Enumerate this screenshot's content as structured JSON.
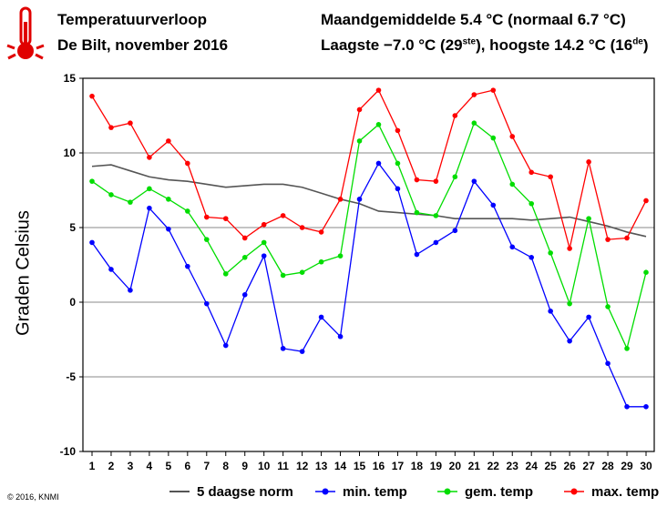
{
  "header": {
    "title": "Temperatuurverloop",
    "subtitle": "De Bilt, november 2016",
    "monthly_avg": "Maandgemiddelde 5.4 °C (normaal 6.7 °C)",
    "extremes_pre": "Laagste −7.0 °C (29",
    "extremes_sup1": "ste",
    "extremes_mid": "), hoogste 14.2 °C (16",
    "extremes_sup2": "de",
    "extremes_post": ")"
  },
  "icon": "thermometer-icon",
  "copyright": "© 2016, KNMI",
  "chart_data": {
    "type": "line",
    "ylabel": "Graden Celsius",
    "xlabel": "",
    "x": [
      1,
      2,
      3,
      4,
      5,
      6,
      7,
      8,
      9,
      10,
      11,
      12,
      13,
      14,
      15,
      16,
      17,
      18,
      19,
      20,
      21,
      22,
      23,
      24,
      25,
      26,
      27,
      28,
      29,
      30
    ],
    "ylim": [
      -10,
      15
    ],
    "yticks": [
      -10,
      -5,
      0,
      5,
      10,
      15
    ],
    "grid": true,
    "legend_position": "bottom",
    "series": [
      {
        "name": "5 daagse norm",
        "color": "#555555",
        "marker": false,
        "values": [
          9.1,
          9.2,
          8.8,
          8.4,
          8.2,
          8.1,
          7.9,
          7.7,
          7.8,
          7.9,
          7.9,
          7.7,
          7.3,
          6.9,
          6.6,
          6.1,
          6.0,
          5.9,
          5.8,
          5.6,
          5.6,
          5.6,
          5.6,
          5.5,
          5.6,
          5.7,
          5.4,
          5.1,
          4.7,
          4.4
        ]
      },
      {
        "name": "min. temp",
        "color": "#0000ff",
        "marker": true,
        "values": [
          4.0,
          2.2,
          0.8,
          6.3,
          4.9,
          2.4,
          -0.1,
          -2.9,
          0.5,
          3.1,
          -3.1,
          -3.3,
          -1.0,
          -2.3,
          6.9,
          9.3,
          7.6,
          3.2,
          4.0,
          4.8,
          8.1,
          6.5,
          3.7,
          3.0,
          -0.6,
          -2.6,
          -1.0,
          -4.1,
          -7.0,
          -7.0
        ]
      },
      {
        "name": "gem. temp",
        "color": "#00dd00",
        "marker": true,
        "values": [
          8.1,
          7.2,
          6.7,
          7.6,
          6.9,
          6.1,
          4.2,
          1.9,
          3.0,
          4.0,
          1.8,
          2.0,
          2.7,
          3.1,
          10.8,
          11.9,
          9.3,
          6.0,
          5.8,
          8.4,
          12.0,
          11.0,
          7.9,
          6.6,
          3.3,
          -0.1,
          5.6,
          -0.3,
          -3.1,
          2.0
        ]
      },
      {
        "name": "max. temp",
        "color": "#ff0000",
        "marker": true,
        "values": [
          13.8,
          11.7,
          12.0,
          9.7,
          10.8,
          9.3,
          5.7,
          5.6,
          4.3,
          5.2,
          5.8,
          5.0,
          4.7,
          6.9,
          12.9,
          14.2,
          11.5,
          8.2,
          8.1,
          12.5,
          13.9,
          14.2,
          11.1,
          8.7,
          8.4,
          3.6,
          9.4,
          4.2,
          4.3,
          6.8
        ]
      }
    ]
  }
}
